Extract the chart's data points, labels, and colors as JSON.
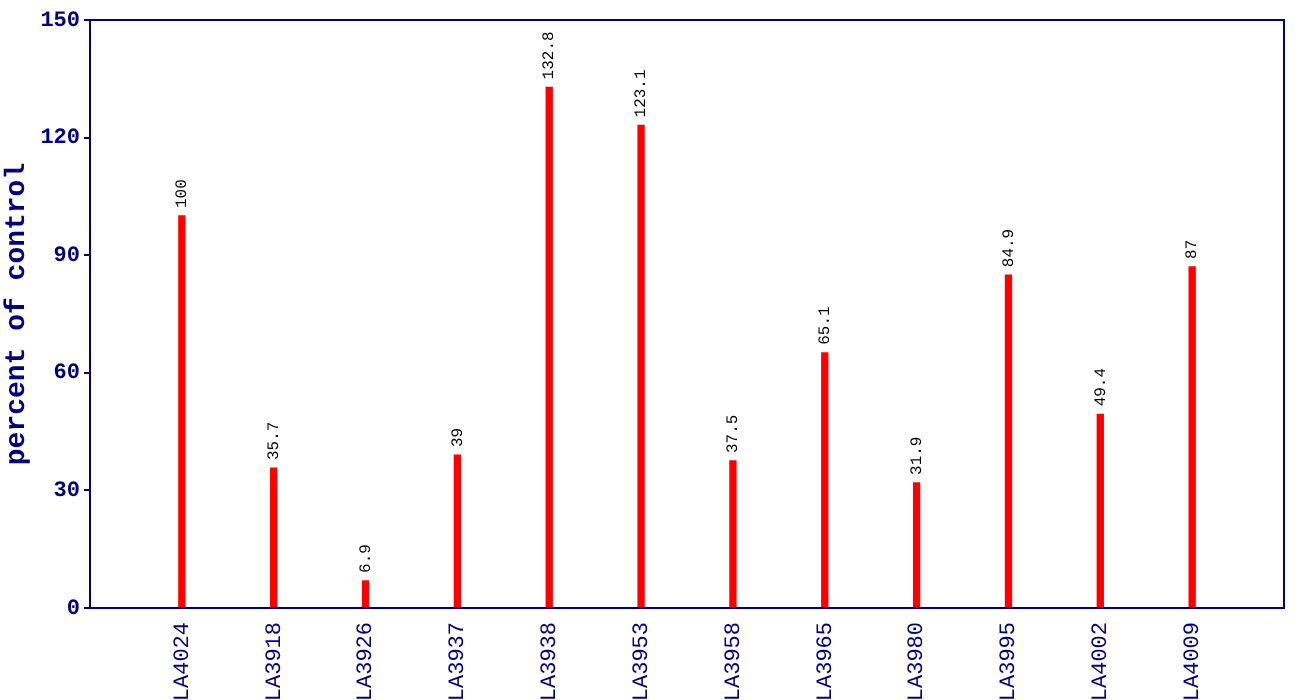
{
  "chart_data": {
    "type": "bar",
    "ylabel": "percent of control",
    "categories": [
      "LA4024",
      "LA3918",
      "LA3926",
      "LA3937",
      "LA3938",
      "LA3953",
      "LA3958",
      "LA3965",
      "LA3980",
      "LA3995",
      "LA4002",
      "LA4009"
    ],
    "values": [
      100,
      35.7,
      6.9,
      39,
      132.8,
      123.1,
      37.5,
      65.1,
      31.9,
      84.9,
      49.4,
      87
    ],
    "color": "#ff0000",
    "ylim": [
      0,
      150
    ],
    "yticks": [
      0,
      30,
      60,
      90,
      120,
      150
    ],
    "grid": false,
    "legend": false,
    "data_labels": true
  }
}
